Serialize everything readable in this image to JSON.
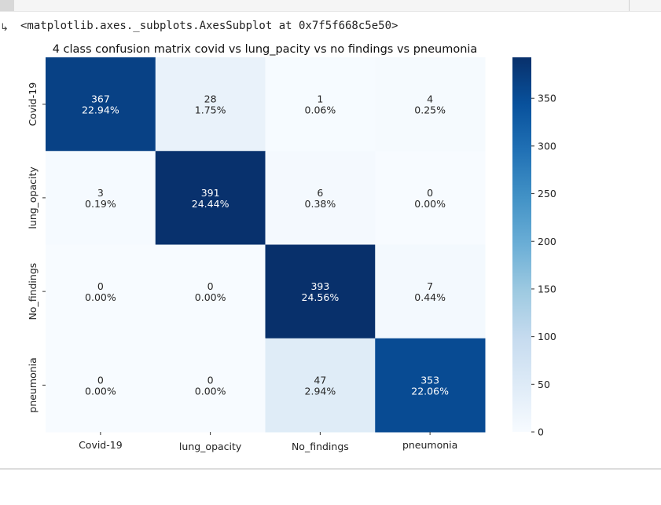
{
  "output": {
    "arrow": "↳",
    "repr": "<matplotlib.axes._subplots.AxesSubplot at 0x7f5f668c5e50>"
  },
  "chart_data": {
    "type": "heatmap",
    "title": "4 class confusion matrix covid vs lung_pacity vs no findings vs pneumonia",
    "x_categories": [
      "Covid-19",
      "lung_opacity",
      "No_findings",
      "pneumonia"
    ],
    "y_categories": [
      "Covid-19",
      "lung_opacity",
      "No_findings",
      "pneumonia"
    ],
    "values": [
      [
        367,
        28,
        1,
        4
      ],
      [
        3,
        391,
        6,
        0
      ],
      [
        0,
        0,
        393,
        7
      ],
      [
        0,
        0,
        47,
        353
      ]
    ],
    "percents": [
      [
        "22.94%",
        "1.75%",
        "0.06%",
        "0.25%"
      ],
      [
        "0.19%",
        "24.44%",
        "0.38%",
        "0.00%"
      ],
      [
        "0.00%",
        "0.00%",
        "24.56%",
        "0.44%"
      ],
      [
        "0.00%",
        "0.00%",
        "2.94%",
        "22.06%"
      ]
    ],
    "colormap": "Blues",
    "colorbar": {
      "range": [
        0,
        393
      ],
      "ticks": [
        0,
        50,
        100,
        150,
        200,
        250,
        300,
        350
      ]
    }
  }
}
